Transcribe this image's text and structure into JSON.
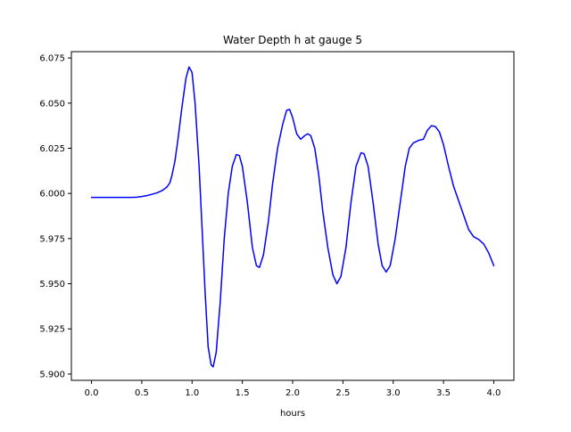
{
  "chart_data": {
    "type": "line",
    "title": "Water Depth h at gauge 5",
    "xlabel": "hours",
    "ylabel": "",
    "xlim": [
      -0.2,
      4.2
    ],
    "ylim": [
      5.8965,
      6.0785
    ],
    "xticks": [
      0.0,
      0.5,
      1.0,
      1.5,
      2.0,
      2.5,
      3.0,
      3.5,
      4.0
    ],
    "xtick_labels": [
      "0.0",
      "0.5",
      "1.0",
      "1.5",
      "2.0",
      "2.5",
      "3.0",
      "3.5",
      "4.0"
    ],
    "yticks": [
      5.9,
      5.925,
      5.95,
      5.975,
      6.0,
      6.025,
      6.05,
      6.075
    ],
    "ytick_labels": [
      "5.900",
      "5.925",
      "5.950",
      "5.975",
      "6.000",
      "6.025",
      "6.050",
      "6.075"
    ],
    "grid": false,
    "series": [
      {
        "color": "#0000ff",
        "points": [
          [
            0.0,
            5.9978
          ],
          [
            0.1,
            5.9978
          ],
          [
            0.2,
            5.9978
          ],
          [
            0.3,
            5.9978
          ],
          [
            0.4,
            5.9978
          ],
          [
            0.45,
            5.9979
          ],
          [
            0.5,
            5.9983
          ],
          [
            0.55,
            5.9988
          ],
          [
            0.6,
            5.9995
          ],
          [
            0.65,
            6.0003
          ],
          [
            0.7,
            6.0015
          ],
          [
            0.75,
            6.0035
          ],
          [
            0.78,
            6.006
          ],
          [
            0.8,
            6.01
          ],
          [
            0.83,
            6.018
          ],
          [
            0.86,
            6.03
          ],
          [
            0.9,
            6.048
          ],
          [
            0.94,
            6.064
          ],
          [
            0.97,
            6.07
          ],
          [
            1.0,
            6.067
          ],
          [
            1.03,
            6.05
          ],
          [
            1.07,
            6.015
          ],
          [
            1.1,
            5.98
          ],
          [
            1.13,
            5.945
          ],
          [
            1.16,
            5.915
          ],
          [
            1.19,
            5.905
          ],
          [
            1.21,
            5.904
          ],
          [
            1.24,
            5.912
          ],
          [
            1.28,
            5.94
          ],
          [
            1.32,
            5.975
          ],
          [
            1.36,
            6.0
          ],
          [
            1.4,
            6.015
          ],
          [
            1.44,
            6.0215
          ],
          [
            1.47,
            6.021
          ],
          [
            1.5,
            6.015
          ],
          [
            1.55,
            5.995
          ],
          [
            1.6,
            5.97
          ],
          [
            1.64,
            5.96
          ],
          [
            1.67,
            5.959
          ],
          [
            1.71,
            5.966
          ],
          [
            1.76,
            5.985
          ],
          [
            1.8,
            6.005
          ],
          [
            1.85,
            6.025
          ],
          [
            1.9,
            6.038
          ],
          [
            1.94,
            6.046
          ],
          [
            1.97,
            6.0465
          ],
          [
            2.0,
            6.042
          ],
          [
            2.04,
            6.033
          ],
          [
            2.08,
            6.03
          ],
          [
            2.12,
            6.032
          ],
          [
            2.15,
            6.033
          ],
          [
            2.18,
            6.032
          ],
          [
            2.22,
            6.025
          ],
          [
            2.26,
            6.01
          ],
          [
            2.3,
            5.99
          ],
          [
            2.35,
            5.97
          ],
          [
            2.4,
            5.955
          ],
          [
            2.44,
            5.95
          ],
          [
            2.48,
            5.954
          ],
          [
            2.53,
            5.97
          ],
          [
            2.58,
            5.995
          ],
          [
            2.63,
            6.015
          ],
          [
            2.68,
            6.0225
          ],
          [
            2.71,
            6.022
          ],
          [
            2.75,
            6.015
          ],
          [
            2.8,
            5.995
          ],
          [
            2.85,
            5.972
          ],
          [
            2.89,
            5.96
          ],
          [
            2.93,
            5.9565
          ],
          [
            2.97,
            5.96
          ],
          [
            3.02,
            5.975
          ],
          [
            3.07,
            5.995
          ],
          [
            3.12,
            6.015
          ],
          [
            3.16,
            6.025
          ],
          [
            3.2,
            6.028
          ],
          [
            3.26,
            6.0295
          ],
          [
            3.3,
            6.03
          ],
          [
            3.34,
            6.035
          ],
          [
            3.38,
            6.0375
          ],
          [
            3.42,
            6.037
          ],
          [
            3.46,
            6.034
          ],
          [
            3.5,
            6.027
          ],
          [
            3.55,
            6.015
          ],
          [
            3.6,
            6.004
          ],
          [
            3.65,
            5.996
          ],
          [
            3.7,
            5.988
          ],
          [
            3.75,
            5.98
          ],
          [
            3.8,
            5.976
          ],
          [
            3.85,
            5.9745
          ],
          [
            3.9,
            5.972
          ],
          [
            3.95,
            5.967
          ],
          [
            4.0,
            5.96
          ]
        ]
      }
    ]
  }
}
